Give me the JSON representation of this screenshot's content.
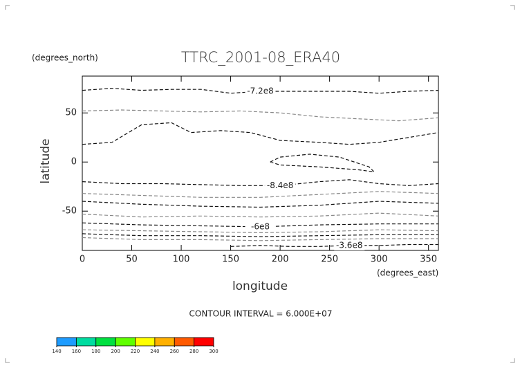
{
  "chart_data": {
    "type": "contour",
    "title": "TTRC_2001-08_ERA40",
    "xlabel": "longitude",
    "ylabel": "latitude",
    "xunit": "(degrees_east)",
    "yunit": "(degrees_north)",
    "footer": "CONTOUR INTERVAL = 6.000E+07",
    "xlim": [
      0,
      360
    ],
    "ylim": [
      -90,
      87.5
    ],
    "xticks": [
      0,
      50,
      100,
      150,
      200,
      250,
      300,
      350
    ],
    "yticks": [
      -50,
      0,
      50
    ],
    "contours": [
      {
        "level": -720000000,
        "label": "-7.2e8",
        "color": "#111111",
        "x": [
          0,
          30,
          60,
          90,
          120,
          150,
          180,
          210,
          240,
          270,
          300,
          330,
          360
        ],
        "y": [
          73,
          75,
          73,
          74,
          74,
          70,
          72,
          72,
          72,
          72,
          70,
          72,
          73
        ]
      },
      {
        "level": -780000000,
        "color": "#888888",
        "x": [
          0,
          40,
          80,
          120,
          160,
          200,
          240,
          280,
          320,
          360
        ],
        "y": [
          52,
          53,
          52,
          51,
          52,
          50,
          46,
          44,
          42,
          45
        ]
      },
      {
        "level": -840000000,
        "color": "#111111",
        "x": [
          0,
          30,
          60,
          90,
          110,
          140,
          170,
          200,
          240,
          270,
          300,
          330,
          360
        ],
        "y": [
          18,
          20,
          38,
          40,
          30,
          32,
          30,
          22,
          20,
          18,
          20,
          25,
          30
        ]
      },
      {
        "level": -840000000,
        "color": "#111111",
        "x": [
          190,
          200,
          230,
          260,
          290,
          295,
          280,
          240,
          200,
          190
        ],
        "y": [
          0,
          5,
          8,
          5,
          -5,
          -10,
          -8,
          -5,
          -3,
          0
        ]
      },
      {
        "level": -840000000,
        "label": "-8.4e8",
        "color": "#111111",
        "x": [
          0,
          40,
          80,
          120,
          160,
          200,
          240,
          270,
          300,
          330,
          360
        ],
        "y": [
          -20,
          -22,
          -22,
          -23,
          -24,
          -24,
          -20,
          -18,
          -22,
          -24,
          -22
        ]
      },
      {
        "level": -780000000,
        "color": "#888888",
        "x": [
          0,
          60,
          120,
          180,
          240,
          300,
          360
        ],
        "y": [
          -32,
          -34,
          -36,
          -36,
          -33,
          -30,
          -32
        ]
      },
      {
        "level": -720000000,
        "color": "#111111",
        "x": [
          0,
          60,
          120,
          180,
          240,
          300,
          360
        ],
        "y": [
          -40,
          -43,
          -45,
          -46,
          -44,
          -40,
          -42
        ]
      },
      {
        "level": -660000000,
        "color": "#888888",
        "x": [
          0,
          60,
          120,
          180,
          240,
          300,
          360
        ],
        "y": [
          -53,
          -56,
          -55,
          -56,
          -55,
          -52,
          -55
        ]
      },
      {
        "level": -600000000,
        "label": "-6e8",
        "color": "#111111",
        "x": [
          0,
          60,
          120,
          180,
          240,
          300,
          360
        ],
        "y": [
          -62,
          -64,
          -65,
          -66,
          -64,
          -63,
          -63
        ]
      },
      {
        "level": -540000000,
        "color": "#888888",
        "x": [
          0,
          60,
          120,
          180,
          240,
          300,
          360
        ],
        "y": [
          -69,
          -70,
          -71,
          -72,
          -71,
          -69,
          -70
        ]
      },
      {
        "level": -480000000,
        "color": "#111111",
        "x": [
          0,
          60,
          120,
          180,
          240,
          300,
          360
        ],
        "y": [
          -73,
          -75,
          -75,
          -76,
          -75,
          -74,
          -74
        ]
      },
      {
        "level": -420000000,
        "color": "#888888",
        "x": [
          0,
          60,
          120,
          180,
          240,
          300,
          360
        ],
        "y": [
          -77,
          -79,
          -79,
          -80,
          -79,
          -78,
          -78
        ]
      },
      {
        "level": -360000000,
        "label": "-3.6e8",
        "color": "#111111",
        "x": [
          150,
          180,
          210,
          240,
          270,
          300,
          330,
          360
        ],
        "y": [
          -86,
          -85,
          -86,
          -86,
          -85,
          -85,
          -84,
          -84
        ]
      }
    ],
    "colorbar": {
      "colors": [
        "#1e9cff",
        "#00dca0",
        "#00e040",
        "#60ff00",
        "#ffff00",
        "#ffb000",
        "#ff5a00",
        "#ff0000"
      ],
      "ticks": [
        140,
        160,
        180,
        200,
        220,
        240,
        260,
        280,
        300
      ]
    }
  }
}
